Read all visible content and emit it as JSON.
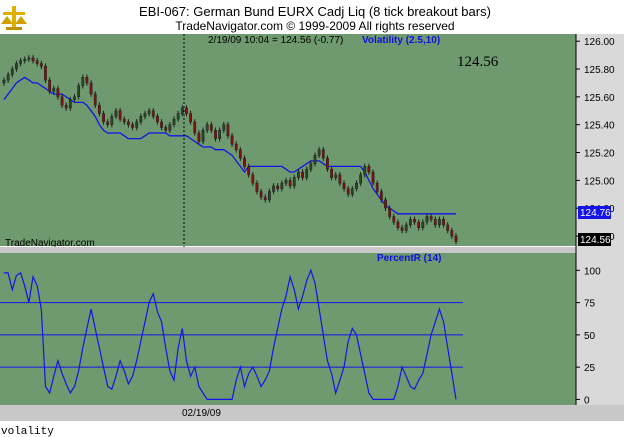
{
  "header": {
    "title": "EBI-067:  German Bund EURX Cadj Liq  (8 tick breakout bars)",
    "copyright": "TradeNavigator.com © 1999-2009 All rights reserved",
    "logo_icon": "scales-logo-icon"
  },
  "price_panel": {
    "info": "2/19/09 10:04 = 124.56 (-0.77)",
    "indicator_label": "Volatility (2.5,10)",
    "last_price": "124.56",
    "watermark": "TradeNavigator.com",
    "flag_volatility": "124.76",
    "flag_price": "124.56"
  },
  "osc_panel": {
    "indicator_label": "PercentR (14)"
  },
  "x_axis": {
    "date_label": "02/19/09"
  },
  "footer": {
    "status": "volality"
  },
  "colors": {
    "panel_bg": "#6f9a6f",
    "up_candle": "#2a4a2a",
    "down_candle": "#8a1010",
    "indicator": "#1414e6"
  },
  "chart_data": [
    {
      "type": "candlestick",
      "title": "EBI-067:  German Bund EURX Cadj Liq  (8 tick breakout bars)",
      "ylim": [
        124.55,
        126.03
      ],
      "yticks": [
        "126.00",
        "125.80",
        "125.60",
        "125.40",
        "125.20",
        "125.00",
        "124.80",
        "124.60"
      ],
      "close": [
        125.72,
        125.76,
        125.8,
        125.84,
        125.86,
        125.87,
        125.88,
        125.86,
        125.84,
        125.82,
        125.72,
        125.64,
        125.66,
        125.6,
        125.54,
        125.52,
        125.58,
        125.6,
        125.68,
        125.74,
        125.7,
        125.62,
        125.54,
        125.48,
        125.42,
        125.4,
        125.46,
        125.5,
        125.44,
        125.42,
        125.4,
        125.38,
        125.42,
        125.46,
        125.48,
        125.5,
        125.46,
        125.42,
        125.38,
        125.36,
        125.4,
        125.44,
        125.48,
        125.52,
        125.48,
        125.42,
        125.34,
        125.28,
        125.36,
        125.4,
        125.36,
        125.3,
        125.36,
        125.4,
        125.32,
        125.26,
        125.22,
        125.16,
        125.1,
        125.04,
        124.98,
        124.92,
        124.88,
        124.86,
        124.92,
        124.96,
        124.94,
        124.98,
        125.0,
        124.96,
        125.02,
        125.06,
        125.02,
        125.08,
        125.12,
        125.18,
        125.22,
        125.16,
        125.08,
        125.02,
        125.04,
        124.98,
        124.94,
        124.9,
        124.94,
        124.98,
        125.04,
        125.1,
        125.06,
        124.98,
        124.92,
        124.86,
        124.8,
        124.74,
        124.7,
        124.66,
        124.64,
        124.68,
        124.72,
        124.7,
        124.66,
        124.7,
        124.74,
        124.72,
        124.68,
        124.72,
        124.68,
        124.64,
        124.6,
        124.56
      ],
      "volatility": [
        125.58,
        125.62,
        125.66,
        125.7,
        125.72,
        125.74,
        125.72,
        125.7,
        125.7,
        125.68,
        125.66,
        125.64,
        125.62,
        125.62,
        125.62,
        125.6,
        125.58,
        125.56,
        125.56,
        125.56,
        125.54,
        125.5,
        125.46,
        125.4,
        125.36,
        125.34,
        125.34,
        125.34,
        125.34,
        125.32,
        125.3,
        125.3,
        125.3,
        125.3,
        125.32,
        125.34,
        125.34,
        125.34,
        125.34,
        125.34,
        125.32,
        125.32,
        125.32,
        125.32,
        125.32,
        125.3,
        125.28,
        125.26,
        125.24,
        125.24,
        125.24,
        125.22,
        125.22,
        125.22,
        125.2,
        125.18,
        125.14,
        125.1,
        125.06,
        125.1,
        125.1,
        125.1,
        125.1,
        125.1,
        125.1,
        125.1,
        125.1,
        125.1,
        125.08,
        125.06,
        125.06,
        125.08,
        125.1,
        125.12,
        125.14,
        125.14,
        125.14,
        125.12,
        125.1,
        125.1,
        125.1,
        125.1,
        125.1,
        125.1,
        125.1,
        125.1,
        125.1,
        125.06,
        125.0,
        124.94,
        124.9,
        124.86,
        124.82,
        124.8,
        124.78,
        124.76,
        124.76,
        124.76,
        124.76,
        124.76,
        124.76,
        124.76,
        124.76,
        124.76,
        124.76,
        124.76,
        124.76,
        124.76,
        124.76,
        124.76
      ]
    },
    {
      "type": "line",
      "title": "PercentR (14)",
      "ylim": [
        -2,
        108
      ],
      "yticks": [
        "100",
        "75",
        "50",
        "25",
        "0"
      ],
      "hlines": [
        75,
        50,
        25
      ],
      "values": [
        98,
        98,
        85,
        96,
        98,
        88,
        75,
        95,
        88,
        70,
        10,
        5,
        18,
        30,
        20,
        12,
        5,
        10,
        22,
        40,
        55,
        70,
        55,
        40,
        25,
        10,
        8,
        18,
        30,
        22,
        12,
        18,
        30,
        45,
        60,
        75,
        82,
        68,
        60,
        40,
        22,
        15,
        40,
        55,
        30,
        18,
        25,
        10,
        5,
        0,
        0,
        0,
        0,
        0,
        0,
        0,
        15,
        25,
        10,
        20,
        25,
        18,
        10,
        15,
        22,
        40,
        55,
        70,
        80,
        95,
        85,
        70,
        80,
        92,
        100,
        90,
        70,
        50,
        30,
        20,
        5,
        15,
        25,
        45,
        55,
        50,
        35,
        20,
        5,
        0,
        0,
        0,
        0,
        0,
        0,
        10,
        25,
        18,
        10,
        8,
        15,
        20,
        35,
        50,
        60,
        70,
        60,
        40,
        20,
        0
      ]
    }
  ]
}
